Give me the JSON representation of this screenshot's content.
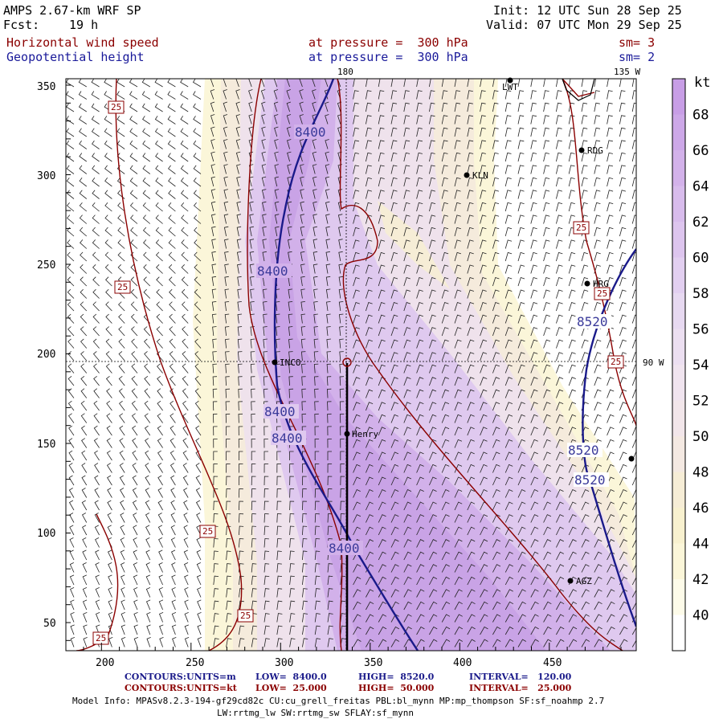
{
  "header": {
    "model": "AMPS 2.67-km WRF SP",
    "fcst_label": "Fcst:",
    "fcst_value": "19 h",
    "init": "Init: 12 UTC Sun 28 Sep 25",
    "valid": "Valid: 07 UTC Mon 29 Sep 25",
    "field1": "Horizontal wind speed",
    "field1_level": "at pressure =  300 hPa",
    "field1_sm": "sm= 3",
    "field2": "Geopotential height",
    "field2_level": "at pressure =  300 hPa",
    "field2_sm": "sm= 2"
  },
  "map": {
    "lon_180": "180",
    "lon_135w": "135 W",
    "lon_90w": "90 W",
    "x_ticks": [
      "200",
      "250",
      "300",
      "350",
      "400",
      "450"
    ],
    "y_ticks": [
      "50",
      "100",
      "150",
      "200",
      "250",
      "300",
      "350"
    ],
    "stations": [
      "LWT",
      "RDG",
      "KLN",
      "HRG",
      "INCO",
      "Henry",
      "AGZ"
    ],
    "height_labels": [
      "8400",
      "8400",
      "8400",
      "8400",
      "8400",
      "8520",
      "8520",
      "8520"
    ],
    "speed_labels": [
      "25",
      "25",
      "25",
      "25",
      "25",
      "25",
      "25"
    ]
  },
  "colorbar": {
    "unit": "kt",
    "labels": [
      "68",
      "66",
      "64",
      "62",
      "60",
      "58",
      "56",
      "54",
      "52",
      "50",
      "48",
      "46",
      "44",
      "42",
      "40"
    ],
    "colors": [
      "#c89ee6",
      "#cda8e8",
      "#d3b2ea",
      "#d8bcec",
      "#ddc5ee",
      "#e2cff0",
      "#e7d9f1",
      "#ecdff1",
      "#f0e4ef",
      "#f2e6ea",
      "#f4e9e2",
      "#f6edd6",
      "#f8f1cf",
      "#fbf6d9",
      "#fdfbe9",
      "#ffffff"
    ]
  },
  "footer": {
    "c1_label": "CONTOURS:",
    "c1_units": "UNITS=m",
    "c1_low": "LOW=  8400.0",
    "c1_high": "HIGH=  8520.0",
    "c1_int": "INTERVAL=   120.00",
    "c2_label": "CONTOURS:",
    "c2_units": "UNITS=kt",
    "c2_low": "LOW=  25.000",
    "c2_high": "HIGH=  50.000",
    "c2_int": "INTERVAL=   25.000",
    "info1": "Model Info: MPASv8.2.3-194-gf29cd82c CU:cu_grell_freitas PBL:bl_mynn MP:mp_thompson SF:sf_noahmp 2.7",
    "info2": "LW:rrtmg_lw SW:rrtmg_sw SFLAY:sf_mynn"
  }
}
